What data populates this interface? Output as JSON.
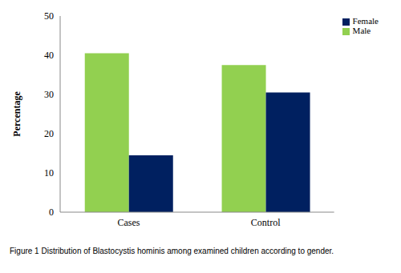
{
  "chart_data": {
    "type": "bar",
    "title": "Figure 1 Distribution of Blastocystis hominis among examined children according to gender.",
    "y_label": "Percentage",
    "categories": [
      "Cases",
      "Control"
    ],
    "series": [
      {
        "name": "Male",
        "color": "#92d050",
        "values": [
          40.5,
          37.5
        ]
      },
      {
        "name": "Female",
        "color": "#002060",
        "values": [
          14.5,
          30.5
        ]
      }
    ],
    "ylim": [
      0,
      50
    ],
    "yticks": [
      0,
      10,
      20,
      30,
      40,
      50
    ],
    "grid": false,
    "legend": "upper right"
  }
}
